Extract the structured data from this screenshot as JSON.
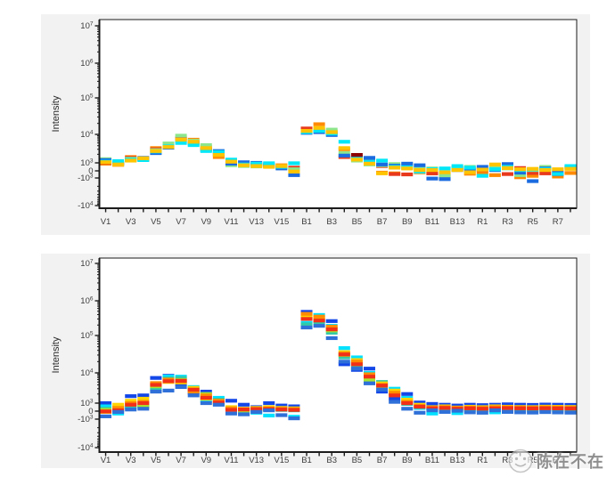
{
  "colors": {
    "page_background": "#ffffff",
    "panel_background": "#f2f2f2",
    "plot_background": "#ffffff",
    "axis": "#1b1b1b",
    "tick_label": "#3c3c3c",
    "watermark_gray": "#8f8f8f"
  },
  "watermark": {
    "icon": "round-face-logo",
    "text": "陈在不在"
  },
  "chart_data": [
    {
      "type": "scatter",
      "marker": "horizontal-tick",
      "title": "",
      "ylabel": "Intensity",
      "y_scale": "biexponential",
      "grid": false,
      "legend": "none",
      "y_ticks": [
        {
          "base": "10",
          "exp": "7",
          "value": 10000000
        },
        {
          "base": "10",
          "exp": "6",
          "value": 1000000
        },
        {
          "base": "10",
          "exp": "5",
          "value": 100000
        },
        {
          "base": "10",
          "exp": "4",
          "value": 10000
        },
        {
          "base": "10",
          "exp": "3",
          "value": 1000
        },
        {
          "base": "0",
          "exp": "",
          "value": 0
        },
        {
          "base": "-10",
          "exp": "3",
          "value": -1000
        },
        {
          "base": "-10",
          "exp": "4",
          "value": -10000
        }
      ],
      "x_categories": [
        "V1",
        "V2",
        "V3",
        "V4",
        "V5",
        "V6",
        "V7",
        "V8",
        "V9",
        "V10",
        "V11",
        "V12",
        "V13",
        "V14",
        "V15",
        "V16",
        "B1",
        "B2",
        "B3",
        "B4",
        "B5",
        "B6",
        "B7",
        "B8",
        "B9",
        "B10",
        "B11",
        "B12",
        "B13",
        "B14",
        "R1",
        "R2",
        "R3",
        "R4",
        "R5",
        "R6",
        "R7",
        "R8"
      ],
      "x_label_every": 2,
      "series": [
        {
          "color": "#FF8A00",
          "values": [
            900,
            750,
            1600,
            1350,
            3300,
            4200,
            7000,
            6500,
            3600,
            1600,
            1200,
            900,
            800,
            650,
            700,
            300,
            13000,
            19000,
            12000,
            3000,
            1600,
            850,
            -250,
            -350,
            350,
            -200,
            -350,
            -500,
            300,
            -400,
            -350,
            -600,
            400,
            -900,
            -700,
            400,
            -800,
            -300
          ]
        },
        {
          "color": "#E8391C",
          "values": [
            1000,
            850,
            1500,
            1300,
            3000,
            4000,
            7500,
            5200,
            3000,
            2000,
            1000,
            750,
            700,
            600,
            450,
            400,
            14500,
            13000,
            11000,
            1600,
            1450,
            1200,
            600,
            -450,
            -500,
            300,
            -350,
            -650,
            400,
            300,
            100,
            350,
            -450,
            350,
            -300,
            -350,
            -500,
            450
          ]
        },
        {
          "color": "#8CE68C",
          "values": [
            1350,
            900,
            1400,
            1400,
            2800,
            4800,
            9000,
            6000,
            4200,
            2200,
            700,
            600,
            550,
            700,
            400,
            200,
            12000,
            14000,
            13500,
            2200,
            1200,
            800,
            700,
            850,
            800,
            500,
            300,
            -700,
            200,
            500,
            200,
            400,
            300,
            -600,
            100,
            500,
            100,
            350
          ]
        },
        {
          "color": "#1B6BE0",
          "values": [
            1250,
            1000,
            1250,
            1500,
            2200,
            3400,
            6000,
            4800,
            2800,
            2600,
            900,
            1050,
            1000,
            800,
            300,
            -600,
            11000,
            11500,
            9500,
            1800,
            1500,
            1500,
            800,
            650,
            900,
            700,
            -1050,
            -1100,
            100,
            100,
            500,
            100,
            850,
            -250,
            -1300,
            300,
            -200,
            400
          ]
        },
        {
          "color": "#00E8F8",
          "values": [
            1100,
            1150,
            1300,
            1250,
            2500,
            3800,
            5000,
            4200,
            2600,
            2400,
            1300,
            800,
            900,
            950,
            500,
            950,
            11500,
            12500,
            10500,
            5500,
            1400,
            1100,
            1200,
            500,
            450,
            -100,
            200,
            300,
            600,
            400,
            -700,
            200,
            500,
            100,
            200,
            200,
            -450,
            600
          ]
        },
        {
          "color": "#FFC400",
          "values": [
            1050,
            800,
            1200,
            1450,
            2600,
            3600,
            6500,
            5500,
            3300,
            1900,
            1100,
            700,
            600,
            500,
            600,
            -100,
            12500,
            15000,
            11500,
            3300,
            1300,
            900,
            -350,
            400,
            300,
            100,
            100,
            -200,
            100,
            -200,
            150,
            800,
            350,
            200,
            250,
            100,
            200,
            250
          ]
        },
        {
          "color": "#8B0000",
          "values": [
            null,
            null,
            null,
            null,
            null,
            null,
            null,
            null,
            null,
            null,
            null,
            null,
            null,
            null,
            null,
            null,
            null,
            null,
            null,
            null,
            1900,
            null,
            null,
            null,
            null,
            null,
            null,
            null,
            null,
            null,
            null,
            null,
            null,
            null,
            null,
            null,
            null,
            null
          ]
        }
      ]
    },
    {
      "type": "scatter",
      "marker": "horizontal-tick",
      "title": "",
      "ylabel": "Intensity",
      "y_scale": "biexponential",
      "grid": false,
      "legend": "none",
      "y_ticks": [
        {
          "base": "10",
          "exp": "7",
          "value": 10000000
        },
        {
          "base": "10",
          "exp": "6",
          "value": 1000000
        },
        {
          "base": "10",
          "exp": "5",
          "value": 100000
        },
        {
          "base": "10",
          "exp": "4",
          "value": 10000
        },
        {
          "base": "10",
          "exp": "3",
          "value": 1000
        },
        {
          "base": "0",
          "exp": "",
          "value": 0
        },
        {
          "base": "-10",
          "exp": "3",
          "value": -1000
        },
        {
          "base": "-10",
          "exp": "4",
          "value": -10000
        }
      ],
      "x_categories": [
        "V1",
        "V2",
        "V3",
        "V4",
        "V5",
        "V6",
        "V7",
        "V8",
        "V9",
        "V10",
        "V11",
        "V12",
        "V13",
        "V14",
        "V15",
        "V16",
        "B1",
        "B2",
        "B3",
        "B4",
        "B5",
        "B6",
        "B7",
        "B8",
        "B9",
        "B10",
        "B11",
        "B12",
        "B13",
        "B14",
        "R1",
        "R2",
        "R3",
        "R4",
        "R5",
        "R6",
        "R7",
        "R8"
      ],
      "x_label_every": 2,
      "series": [
        {
          "color": "#1447E8",
          "values": [
            1000,
            500,
            1700,
            1800,
            6800,
            8000,
            4200,
            2200,
            2400,
            1100,
            1200,
            800,
            500,
            1000,
            700,
            600,
            480000,
            260000,
            260000,
            17000,
            12000,
            13000,
            2400,
            1400,
            2000,
            1050,
            900,
            800,
            700,
            800,
            750,
            800,
            850,
            800,
            780,
            820,
            800,
            780
          ]
        },
        {
          "color": "#00E0FF",
          "values": [
            600,
            -300,
            400,
            500,
            3200,
            7600,
            7500,
            3400,
            1200,
            1500,
            400,
            200,
            -200,
            -550,
            300,
            -700,
            230000,
            390000,
            190000,
            46000,
            26000,
            10000,
            4800,
            3000,
            1500,
            400,
            -300,
            200,
            -250,
            150,
            100,
            -150,
            200,
            150,
            100,
            180,
            150,
            120
          ]
        },
        {
          "color": "#32C8A8",
          "values": [
            300,
            200,
            600,
            600,
            2800,
            6500,
            6800,
            3000,
            1600,
            1300,
            300,
            -150,
            100,
            200,
            150,
            100,
            210000,
            240000,
            120000,
            26000,
            15000,
            5000,
            5000,
            2000,
            900,
            500,
            300,
            300,
            250,
            300,
            250,
            300,
            300,
            280,
            260,
            300,
            280,
            260
          ]
        },
        {
          "color": "#A8E62E",
          "values": [
            150,
            300,
            900,
            700,
            3600,
            5600,
            5800,
            2600,
            2000,
            900,
            200,
            100,
            200,
            300,
            250,
            200,
            340000,
            290000,
            140000,
            30000,
            18000,
            6000,
            3500,
            2400,
            1200,
            600,
            400,
            450,
            350,
            400,
            350,
            400,
            450,
            380,
            360,
            420,
            400,
            380
          ]
        },
        {
          "color": "#FFD400",
          "values": [
            -100,
            800,
            1200,
            1400,
            4200,
            5000,
            4800,
            3200,
            1400,
            1000,
            500,
            300,
            400,
            500,
            400,
            350,
            380000,
            320000,
            160000,
            36000,
            22000,
            8000,
            4500,
            2600,
            1300,
            800,
            500,
            600,
            450,
            550,
            500,
            600,
            550,
            520,
            500,
            560,
            540,
            520
          ]
        },
        {
          "color": "#FF8C00",
          "values": [
            0,
            400,
            1000,
            1100,
            4600,
            6000,
            5200,
            2400,
            1800,
            1200,
            350,
            250,
            300,
            350,
            300,
            250,
            420000,
            350000,
            180000,
            33000,
            20000,
            9000,
            4000,
            2200,
            1100,
            650,
            450,
            500,
            400,
            450,
            400,
            500,
            480,
            450,
            430,
            470,
            460,
            440
          ]
        },
        {
          "color": "#F23018",
          "values": [
            -50,
            100,
            800,
            1000,
            4000,
            5300,
            5500,
            2800,
            1500,
            1050,
            150,
            200,
            250,
            250,
            200,
            150,
            300000,
            270000,
            150000,
            31000,
            17000,
            7500,
            3800,
            1800,
            1000,
            550,
            350,
            400,
            300,
            350,
            300,
            350,
            380,
            350,
            330,
            360,
            340,
            320
          ]
        },
        {
          "color": "#2E6FD8",
          "values": [
            -650,
            -100,
            200,
            300,
            2400,
            2600,
            3400,
            1800,
            1000,
            800,
            -300,
            -400,
            -100,
            100,
            -500,
            -900,
            170000,
            190000,
            85000,
            20000,
            13000,
            4500,
            2800,
            1100,
            300,
            -200,
            100,
            -100,
            50,
            -150,
            -200,
            100,
            -100,
            -150,
            -180,
            -120,
            -160,
            -190
          ]
        }
      ]
    }
  ]
}
